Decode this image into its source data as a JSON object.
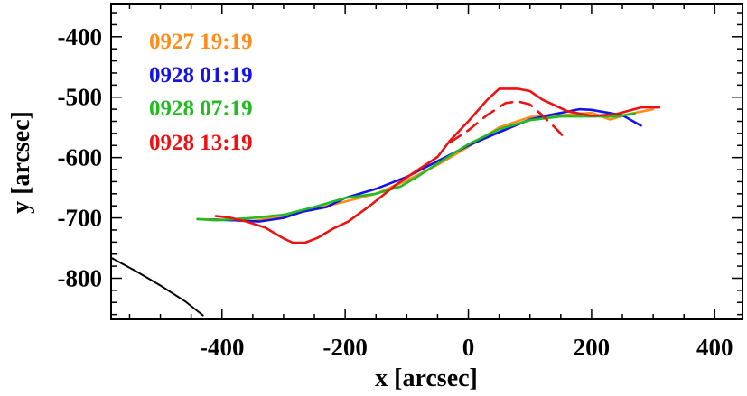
{
  "chart_data": {
    "type": "line",
    "title": "",
    "xlabel": "x  [arcsec]",
    "ylabel": "y  [arcsec]",
    "xlim": [
      -580,
      445
    ],
    "ylim": [
      -868,
      -345
    ],
    "x_ticks": [
      -400,
      -200,
      0,
      200,
      400
    ],
    "y_ticks": [
      -400,
      -500,
      -600,
      -700,
      -800
    ],
    "x_tick_labels": [
      "-400",
      "-200",
      "0",
      "200",
      "400"
    ],
    "y_tick_labels": [
      "-400",
      "-500",
      "-600",
      "-700",
      "-800"
    ],
    "grid": false,
    "legend_position": "top-left",
    "series": [
      {
        "name": "0927 19:19",
        "color": "#ff8c1a",
        "dash": "solid",
        "points": [
          [
            -440,
            -702
          ],
          [
            -400,
            -703
          ],
          [
            -350,
            -705
          ],
          [
            -300,
            -697
          ],
          [
            -250,
            -685
          ],
          [
            -200,
            -673
          ],
          [
            -150,
            -660
          ],
          [
            -100,
            -638
          ],
          [
            -50,
            -612
          ],
          [
            0,
            -582
          ],
          [
            50,
            -550
          ],
          [
            100,
            -533
          ],
          [
            150,
            -530
          ],
          [
            200,
            -526
          ],
          [
            230,
            -537
          ],
          [
            260,
            -528
          ],
          [
            300,
            -520
          ]
        ]
      },
      {
        "name": "0928 01:19",
        "color": "#1414e6",
        "dash": "solid",
        "points": [
          [
            -420,
            -703
          ],
          [
            -380,
            -704
          ],
          [
            -340,
            -706
          ],
          [
            -300,
            -700
          ],
          [
            -270,
            -690
          ],
          [
            -230,
            -682
          ],
          [
            -200,
            -667
          ],
          [
            -150,
            -652
          ],
          [
            -100,
            -632
          ],
          [
            -50,
            -606
          ],
          [
            0,
            -580
          ],
          [
            50,
            -558
          ],
          [
            100,
            -537
          ],
          [
            130,
            -530
          ],
          [
            180,
            -520
          ],
          [
            200,
            -521
          ],
          [
            250,
            -530
          ],
          [
            280,
            -547
          ]
        ]
      },
      {
        "name": "0928 07:19",
        "color": "#22bb22",
        "dash": "solid",
        "points": [
          [
            -440,
            -702
          ],
          [
            -410,
            -704
          ],
          [
            -380,
            -702
          ],
          [
            -350,
            -700
          ],
          [
            -300,
            -695
          ],
          [
            -250,
            -682
          ],
          [
            -200,
            -667
          ],
          [
            -150,
            -660
          ],
          [
            -110,
            -648
          ],
          [
            -80,
            -630
          ],
          [
            -50,
            -610
          ],
          [
            0,
            -578
          ],
          [
            50,
            -553
          ],
          [
            100,
            -538
          ],
          [
            150,
            -532
          ],
          [
            200,
            -532
          ],
          [
            240,
            -532
          ],
          [
            270,
            -527
          ]
        ]
      },
      {
        "name": "0928 13:19",
        "color": "#ee1111",
        "dash": "solid",
        "points": [
          [
            -410,
            -697
          ],
          [
            -390,
            -699
          ],
          [
            -360,
            -706
          ],
          [
            -330,
            -716
          ],
          [
            -300,
            -734
          ],
          [
            -285,
            -741
          ],
          [
            -265,
            -741
          ],
          [
            -245,
            -733
          ],
          [
            -220,
            -718
          ],
          [
            -195,
            -706
          ],
          [
            -160,
            -680
          ],
          [
            -120,
            -647
          ],
          [
            -90,
            -626
          ],
          [
            -50,
            -599
          ],
          [
            -30,
            -572
          ],
          [
            0,
            -540
          ],
          [
            30,
            -505
          ],
          [
            50,
            -486
          ],
          [
            80,
            -486
          ],
          [
            100,
            -490
          ],
          [
            120,
            -504
          ],
          [
            160,
            -523
          ],
          [
            200,
            -531
          ],
          [
            240,
            -528
          ],
          [
            280,
            -517
          ],
          [
            310,
            -517
          ]
        ]
      },
      {
        "name": "",
        "color": "#ee1111",
        "dash": "dashed",
        "points": [
          [
            -30,
            -575
          ],
          [
            0,
            -555
          ],
          [
            30,
            -530
          ],
          [
            60,
            -510
          ],
          [
            80,
            -507
          ],
          [
            100,
            -512
          ],
          [
            120,
            -530
          ],
          [
            145,
            -555
          ],
          [
            155,
            -566
          ]
        ]
      }
    ],
    "limb_arc": {
      "color": "#000000",
      "points": [
        [
          -580,
          -766
        ],
        [
          -540,
          -788
        ],
        [
          -500,
          -812
        ],
        [
          -460,
          -838
        ],
        [
          -430,
          -862
        ]
      ]
    }
  },
  "legend": {
    "entries": [
      {
        "label": "0927 19:19",
        "color": "#ff8c1a"
      },
      {
        "label": "0928 01:19",
        "color": "#1414e6"
      },
      {
        "label": "0928 07:19",
        "color": "#22bb22"
      },
      {
        "label": "0928 13:19",
        "color": "#ee1111"
      }
    ]
  }
}
